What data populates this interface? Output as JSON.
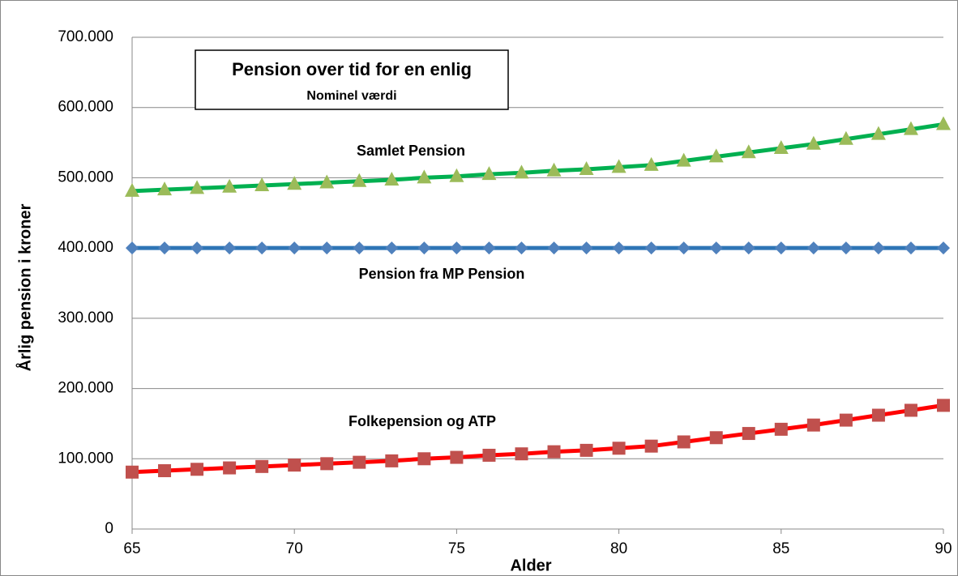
{
  "chart_data": {
    "type": "line",
    "title": "Pension over tid for en enlig",
    "subtitle": "Nominel værdi",
    "x_label": "Alder",
    "y_label": "Årlig pension i kroner",
    "annotations": [
      "Samlet Pension",
      "Pension fra MP Pension",
      "Folkepension og ATP"
    ],
    "x": [
      65,
      66,
      67,
      68,
      69,
      70,
      71,
      72,
      73,
      74,
      75,
      76,
      77,
      78,
      79,
      80,
      81,
      82,
      83,
      84,
      85,
      86,
      87,
      88,
      89,
      90
    ],
    "xlim": [
      65,
      90
    ],
    "xticks": [
      65,
      70,
      75,
      80,
      85,
      90
    ],
    "ylim": [
      0,
      700000
    ],
    "yticks": [
      0,
      {
        "value": 100000,
        "label": "100.000"
      },
      {
        "value": 200000,
        "label": "200.000"
      },
      {
        "value": 300000,
        "label": "300.000"
      },
      {
        "value": 400000,
        "label": "400.000"
      },
      {
        "value": 500000,
        "label": "500.000"
      },
      {
        "value": 600000,
        "label": "600.000"
      },
      {
        "value": 700000,
        "label": "700.000"
      }
    ],
    "grid": true,
    "series": [
      {
        "name": "Samlet Pension",
        "color": "#00b050",
        "marker": "triangle",
        "marker_color": "#9bbb59",
        "values": [
          481000,
          483000,
          485000,
          487000,
          489000,
          491000,
          493000,
          495000,
          497000,
          500000,
          502000,
          505000,
          507000,
          510000,
          512000,
          515000,
          518000,
          524000,
          530000,
          536000,
          542000,
          548000,
          555000,
          562000,
          569000,
          576000
        ]
      },
      {
        "name": "Pension fra MP Pension",
        "color": "#2e75b6",
        "marker": "diamond",
        "marker_color": "#4f81bd",
        "values": [
          400000,
          400000,
          400000,
          400000,
          400000,
          400000,
          400000,
          400000,
          400000,
          400000,
          400000,
          400000,
          400000,
          400000,
          400000,
          400000,
          400000,
          400000,
          400000,
          400000,
          400000,
          400000,
          400000,
          400000,
          400000,
          400000
        ]
      },
      {
        "name": "Folkepension og ATP",
        "color": "#ff0000",
        "marker": "square",
        "marker_color": "#c0504d",
        "values": [
          81000,
          83000,
          85000,
          87000,
          89000,
          91000,
          93000,
          95000,
          97000,
          100000,
          102000,
          105000,
          107000,
          110000,
          112000,
          115000,
          118000,
          124000,
          130000,
          136000,
          142000,
          148000,
          155000,
          162000,
          169000,
          176000
        ]
      }
    ]
  }
}
